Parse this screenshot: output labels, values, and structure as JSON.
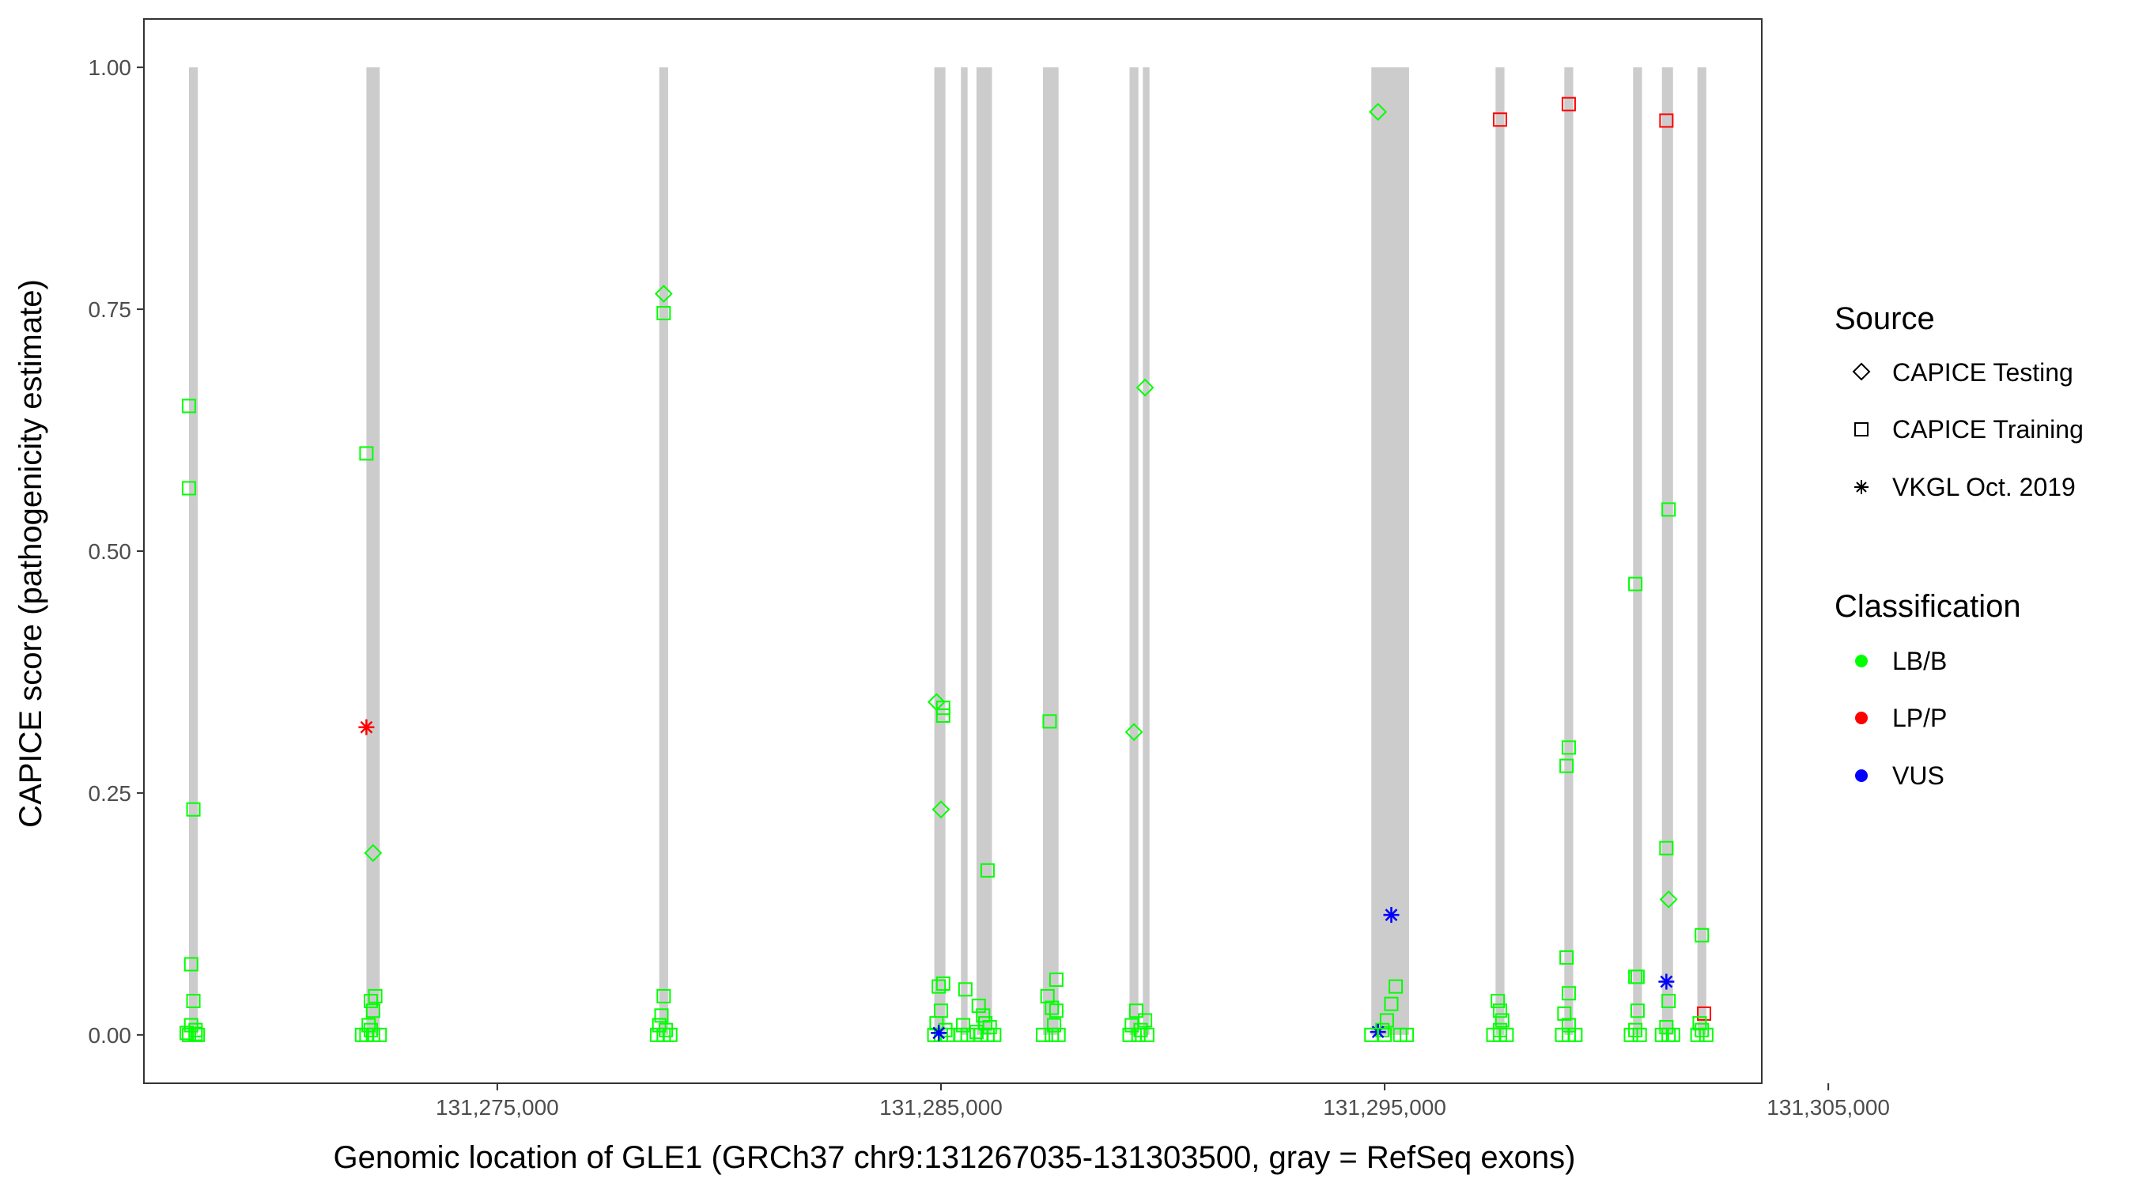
{
  "chart_data": {
    "type": "scatter",
    "title": "",
    "xlabel": "Genomic location of GLE1 (GRCh37 chr9:131267035-131303500, gray = RefSeq exons)",
    "ylabel": "CAPICE score (pathogenicity estimate)",
    "xlim": [
      131267035,
      131303500
    ],
    "ylim": [
      -0.05,
      1.05
    ],
    "x_ticks": [
      131275000,
      131285000,
      131295000,
      131305000
    ],
    "x_tick_labels": [
      "131,275,000",
      "131,285,000",
      "131,295,000",
      "131,305,000"
    ],
    "y_ticks": [
      0,
      0.25,
      0.5,
      0.75,
      1
    ],
    "y_tick_labels": [
      "0.00",
      "0.25",
      "0.50",
      "0.75",
      "1.00"
    ],
    "grid": false,
    "legend_placement": "right",
    "exons": [
      {
        "start": 131268050,
        "end": 131268250
      },
      {
        "start": 131272050,
        "end": 131272350
      },
      {
        "start": 131278650,
        "end": 131278850
      },
      {
        "start": 131284850,
        "end": 131285100
      },
      {
        "start": 131285450,
        "end": 131285600
      },
      {
        "start": 131285800,
        "end": 131286150
      },
      {
        "start": 131287300,
        "end": 131287650
      },
      {
        "start": 131289250,
        "end": 131289450
      },
      {
        "start": 131289550,
        "end": 131289700
      },
      {
        "start": 131294700,
        "end": 131295550
      },
      {
        "start": 131297500,
        "end": 131297700
      },
      {
        "start": 131299050,
        "end": 131299250
      },
      {
        "start": 131300600,
        "end": 131300800
      },
      {
        "start": 131301250,
        "end": 131301500
      },
      {
        "start": 131302050,
        "end": 131302250
      }
    ],
    "legend": {
      "source_title": "Source",
      "source_items": [
        {
          "label": "CAPICE Testing",
          "shape": "diamond"
        },
        {
          "label": "CAPICE Training",
          "shape": "square"
        },
        {
          "label": "VKGL Oct. 2019",
          "shape": "asterisk"
        }
      ],
      "class_title": "Classification",
      "class_items": [
        {
          "label": "LB/B",
          "color": "#00ff00"
        },
        {
          "label": "LP/P",
          "color": "#ff0000"
        },
        {
          "label": "VUS",
          "color": "#0000ff"
        }
      ]
    },
    "colors": {
      "LB/B": "#00ff00",
      "LP/P": "#ff0000",
      "VUS": "#0000ff",
      "exon": "#cccccc"
    },
    "points": [
      {
        "x": 131268050,
        "y": 0.65,
        "source": "CAPICE Training",
        "class": "LB/B"
      },
      {
        "x": 131268050,
        "y": 0.565,
        "source": "CAPICE Training",
        "class": "LB/B"
      },
      {
        "x": 131268150,
        "y": 0.233,
        "source": "CAPICE Training",
        "class": "LB/B"
      },
      {
        "x": 131268100,
        "y": 0.073,
        "source": "CAPICE Training",
        "class": "LB/B"
      },
      {
        "x": 131268150,
        "y": 0.035,
        "source": "CAPICE Training",
        "class": "LB/B"
      },
      {
        "x": 131268100,
        "y": 0.01,
        "source": "CAPICE Training",
        "class": "LB/B"
      },
      {
        "x": 131268200,
        "y": 0.005,
        "source": "CAPICE Training",
        "class": "LB/B"
      },
      {
        "x": 131268000,
        "y": 0.002,
        "source": "CAPICE Training",
        "class": "LB/B"
      },
      {
        "x": 131268200,
        "y": 0.001,
        "source": "CAPICE Training",
        "class": "LB/B"
      },
      {
        "x": 131268050,
        "y": 0.0,
        "source": "CAPICE Training",
        "class": "LB/B"
      },
      {
        "x": 131268250,
        "y": 0.0,
        "source": "CAPICE Training",
        "class": "LB/B"
      },
      {
        "x": 131272050,
        "y": 0.601,
        "source": "CAPICE Training",
        "class": "LB/B"
      },
      {
        "x": 131272050,
        "y": 0.318,
        "source": "VKGL Oct. 2019",
        "class": "LP/P"
      },
      {
        "x": 131272200,
        "y": 0.188,
        "source": "CAPICE Testing",
        "class": "LB/B"
      },
      {
        "x": 131272250,
        "y": 0.04,
        "source": "CAPICE Training",
        "class": "LB/B"
      },
      {
        "x": 131272150,
        "y": 0.035,
        "source": "CAPICE Training",
        "class": "LB/B"
      },
      {
        "x": 131272200,
        "y": 0.025,
        "source": "CAPICE Training",
        "class": "LB/B"
      },
      {
        "x": 131272100,
        "y": 0.01,
        "source": "CAPICE Training",
        "class": "LB/B"
      },
      {
        "x": 131272150,
        "y": 0.005,
        "source": "CAPICE Training",
        "class": "LB/B"
      },
      {
        "x": 131271950,
        "y": 0.0,
        "source": "CAPICE Training",
        "class": "LB/B"
      },
      {
        "x": 131272050,
        "y": 0.0,
        "source": "CAPICE Training",
        "class": "LB/B"
      },
      {
        "x": 131272200,
        "y": 0.0,
        "source": "CAPICE Training",
        "class": "LB/B"
      },
      {
        "x": 131272350,
        "y": 0.0,
        "source": "CAPICE Training",
        "class": "LB/B"
      },
      {
        "x": 131278750,
        "y": 0.766,
        "source": "CAPICE Testing",
        "class": "LB/B"
      },
      {
        "x": 131278750,
        "y": 0.746,
        "source": "CAPICE Training",
        "class": "LB/B"
      },
      {
        "x": 131278750,
        "y": 0.04,
        "source": "CAPICE Training",
        "class": "LB/B"
      },
      {
        "x": 131278700,
        "y": 0.02,
        "source": "CAPICE Training",
        "class": "LB/B"
      },
      {
        "x": 131278650,
        "y": 0.01,
        "source": "CAPICE Training",
        "class": "LB/B"
      },
      {
        "x": 131278800,
        "y": 0.005,
        "source": "CAPICE Training",
        "class": "LB/B"
      },
      {
        "x": 131278600,
        "y": 0.0,
        "source": "CAPICE Training",
        "class": "LB/B"
      },
      {
        "x": 131278750,
        "y": 0.0,
        "source": "CAPICE Training",
        "class": "LB/B"
      },
      {
        "x": 131278900,
        "y": 0.0,
        "source": "CAPICE Training",
        "class": "LB/B"
      },
      {
        "x": 131284900,
        "y": 0.344,
        "source": "CAPICE Testing",
        "class": "LB/B"
      },
      {
        "x": 131285050,
        "y": 0.338,
        "source": "CAPICE Training",
        "class": "LB/B"
      },
      {
        "x": 131285050,
        "y": 0.33,
        "source": "CAPICE Training",
        "class": "LB/B"
      },
      {
        "x": 131285000,
        "y": 0.233,
        "source": "CAPICE Testing",
        "class": "LB/B"
      },
      {
        "x": 131285050,
        "y": 0.053,
        "source": "CAPICE Training",
        "class": "LB/B"
      },
      {
        "x": 131284950,
        "y": 0.05,
        "source": "CAPICE Training",
        "class": "LB/B"
      },
      {
        "x": 131285000,
        "y": 0.025,
        "source": "CAPICE Training",
        "class": "LB/B"
      },
      {
        "x": 131284900,
        "y": 0.012,
        "source": "CAPICE Training",
        "class": "LB/B"
      },
      {
        "x": 131285100,
        "y": 0.005,
        "source": "CAPICE Training",
        "class": "LB/B"
      },
      {
        "x": 131284850,
        "y": 0.0,
        "source": "CAPICE Training",
        "class": "LB/B"
      },
      {
        "x": 131285000,
        "y": 0.0,
        "source": "CAPICE Training",
        "class": "LB/B"
      },
      {
        "x": 131285150,
        "y": 0.0,
        "source": "CAPICE Training",
        "class": "LB/B"
      },
      {
        "x": 131284950,
        "y": 0.002,
        "source": "VKGL Oct. 2019",
        "class": "VUS"
      },
      {
        "x": 131285550,
        "y": 0.047,
        "source": "CAPICE Training",
        "class": "LB/B"
      },
      {
        "x": 131285500,
        "y": 0.01,
        "source": "CAPICE Training",
        "class": "LB/B"
      },
      {
        "x": 131285450,
        "y": 0.0,
        "source": "CAPICE Training",
        "class": "LB/B"
      },
      {
        "x": 131285600,
        "y": 0.0,
        "source": "CAPICE Training",
        "class": "LB/B"
      },
      {
        "x": 131286050,
        "y": 0.17,
        "source": "CAPICE Training",
        "class": "LB/B"
      },
      {
        "x": 131285850,
        "y": 0.03,
        "source": "CAPICE Training",
        "class": "LB/B"
      },
      {
        "x": 131285950,
        "y": 0.02,
        "source": "CAPICE Training",
        "class": "LB/B"
      },
      {
        "x": 131286000,
        "y": 0.012,
        "source": "CAPICE Training",
        "class": "LB/B"
      },
      {
        "x": 131286100,
        "y": 0.008,
        "source": "CAPICE Training",
        "class": "LB/B"
      },
      {
        "x": 131285800,
        "y": 0.003,
        "source": "CAPICE Training",
        "class": "LB/B"
      },
      {
        "x": 131285900,
        "y": 0.0,
        "source": "CAPICE Training",
        "class": "LB/B"
      },
      {
        "x": 131286050,
        "y": 0.0,
        "source": "CAPICE Training",
        "class": "LB/B"
      },
      {
        "x": 131286200,
        "y": 0.0,
        "source": "CAPICE Training",
        "class": "LB/B"
      },
      {
        "x": 131287450,
        "y": 0.324,
        "source": "CAPICE Training",
        "class": "LB/B"
      },
      {
        "x": 131287600,
        "y": 0.057,
        "source": "CAPICE Training",
        "class": "LB/B"
      },
      {
        "x": 131287400,
        "y": 0.04,
        "source": "CAPICE Training",
        "class": "LB/B"
      },
      {
        "x": 131287500,
        "y": 0.028,
        "source": "CAPICE Training",
        "class": "LB/B"
      },
      {
        "x": 131287600,
        "y": 0.025,
        "source": "CAPICE Training",
        "class": "LB/B"
      },
      {
        "x": 131287550,
        "y": 0.01,
        "source": "CAPICE Training",
        "class": "LB/B"
      },
      {
        "x": 131287300,
        "y": 0.0,
        "source": "CAPICE Training",
        "class": "LB/B"
      },
      {
        "x": 131287500,
        "y": 0.0,
        "source": "CAPICE Training",
        "class": "LB/B"
      },
      {
        "x": 131287650,
        "y": 0.0,
        "source": "CAPICE Training",
        "class": "LB/B"
      },
      {
        "x": 131289350,
        "y": 0.313,
        "source": "CAPICE Testing",
        "class": "LB/B"
      },
      {
        "x": 131289600,
        "y": 0.669,
        "source": "CAPICE Testing",
        "class": "LB/B"
      },
      {
        "x": 131289400,
        "y": 0.025,
        "source": "CAPICE Training",
        "class": "LB/B"
      },
      {
        "x": 131289600,
        "y": 0.015,
        "source": "CAPICE Training",
        "class": "LB/B"
      },
      {
        "x": 131289300,
        "y": 0.01,
        "source": "CAPICE Training",
        "class": "LB/B"
      },
      {
        "x": 131289500,
        "y": 0.005,
        "source": "CAPICE Training",
        "class": "LB/B"
      },
      {
        "x": 131289250,
        "y": 0.0,
        "source": "CAPICE Training",
        "class": "LB/B"
      },
      {
        "x": 131289450,
        "y": 0.0,
        "source": "CAPICE Training",
        "class": "LB/B"
      },
      {
        "x": 131289650,
        "y": 0.0,
        "source": "CAPICE Training",
        "class": "LB/B"
      },
      {
        "x": 131294850,
        "y": 0.954,
        "source": "CAPICE Testing",
        "class": "LB/B"
      },
      {
        "x": 131295150,
        "y": 0.124,
        "source": "VKGL Oct. 2019",
        "class": "VUS"
      },
      {
        "x": 131295250,
        "y": 0.05,
        "source": "CAPICE Training",
        "class": "LB/B"
      },
      {
        "x": 131295150,
        "y": 0.032,
        "source": "CAPICE Training",
        "class": "LB/B"
      },
      {
        "x": 131295050,
        "y": 0.015,
        "source": "CAPICE Training",
        "class": "LB/B"
      },
      {
        "x": 131294950,
        "y": 0.005,
        "source": "CAPICE Training",
        "class": "LB/B"
      },
      {
        "x": 131294850,
        "y": 0.003,
        "source": "VKGL Oct. 2019",
        "class": "VUS"
      },
      {
        "x": 131294700,
        "y": 0.0,
        "source": "CAPICE Training",
        "class": "LB/B"
      },
      {
        "x": 131295000,
        "y": 0.0,
        "source": "CAPICE Training",
        "class": "LB/B"
      },
      {
        "x": 131295350,
        "y": 0.0,
        "source": "CAPICE Training",
        "class": "LB/B"
      },
      {
        "x": 131295500,
        "y": 0.0,
        "source": "CAPICE Training",
        "class": "LB/B"
      },
      {
        "x": 131297600,
        "y": 0.946,
        "source": "CAPICE Training",
        "class": "LP/P"
      },
      {
        "x": 131297550,
        "y": 0.035,
        "source": "CAPICE Training",
        "class": "LB/B"
      },
      {
        "x": 131297600,
        "y": 0.025,
        "source": "CAPICE Training",
        "class": "LB/B"
      },
      {
        "x": 131297650,
        "y": 0.015,
        "source": "CAPICE Training",
        "class": "LB/B"
      },
      {
        "x": 131297600,
        "y": 0.005,
        "source": "CAPICE Training",
        "class": "LB/B"
      },
      {
        "x": 131297450,
        "y": 0.0,
        "source": "CAPICE Training",
        "class": "LB/B"
      },
      {
        "x": 131297600,
        "y": 0.0,
        "source": "CAPICE Training",
        "class": "LB/B"
      },
      {
        "x": 131297750,
        "y": 0.0,
        "source": "CAPICE Training",
        "class": "LB/B"
      },
      {
        "x": 131299150,
        "y": 0.962,
        "source": "CAPICE Training",
        "class": "LP/P"
      },
      {
        "x": 131299150,
        "y": 0.297,
        "source": "CAPICE Training",
        "class": "LB/B"
      },
      {
        "x": 131299100,
        "y": 0.278,
        "source": "CAPICE Training",
        "class": "LB/B"
      },
      {
        "x": 131299100,
        "y": 0.08,
        "source": "CAPICE Training",
        "class": "LB/B"
      },
      {
        "x": 131299150,
        "y": 0.043,
        "source": "CAPICE Training",
        "class": "LB/B"
      },
      {
        "x": 131299050,
        "y": 0.022,
        "source": "CAPICE Training",
        "class": "LB/B"
      },
      {
        "x": 131299150,
        "y": 0.01,
        "source": "CAPICE Training",
        "class": "LB/B"
      },
      {
        "x": 131299000,
        "y": 0.0,
        "source": "CAPICE Training",
        "class": "LB/B"
      },
      {
        "x": 131299150,
        "y": 0.0,
        "source": "CAPICE Training",
        "class": "LB/B"
      },
      {
        "x": 131299300,
        "y": 0.0,
        "source": "CAPICE Training",
        "class": "LB/B"
      },
      {
        "x": 131300650,
        "y": 0.466,
        "source": "CAPICE Training",
        "class": "LB/B"
      },
      {
        "x": 131300650,
        "y": 0.06,
        "source": "CAPICE Training",
        "class": "LB/B"
      },
      {
        "x": 131300700,
        "y": 0.06,
        "source": "CAPICE Training",
        "class": "LB/B"
      },
      {
        "x": 131300700,
        "y": 0.025,
        "source": "CAPICE Training",
        "class": "LB/B"
      },
      {
        "x": 131300650,
        "y": 0.005,
        "source": "CAPICE Training",
        "class": "LB/B"
      },
      {
        "x": 131300550,
        "y": 0.0,
        "source": "CAPICE Training",
        "class": "LB/B"
      },
      {
        "x": 131300750,
        "y": 0.0,
        "source": "CAPICE Training",
        "class": "LB/B"
      },
      {
        "x": 131301350,
        "y": 0.945,
        "source": "CAPICE Training",
        "class": "LP/P"
      },
      {
        "x": 131301400,
        "y": 0.543,
        "source": "CAPICE Training",
        "class": "LB/B"
      },
      {
        "x": 131301350,
        "y": 0.193,
        "source": "CAPICE Training",
        "class": "LB/B"
      },
      {
        "x": 131301400,
        "y": 0.14,
        "source": "CAPICE Testing",
        "class": "LB/B"
      },
      {
        "x": 131301350,
        "y": 0.055,
        "source": "VKGL Oct. 2019",
        "class": "VUS"
      },
      {
        "x": 131301400,
        "y": 0.035,
        "source": "CAPICE Training",
        "class": "LB/B"
      },
      {
        "x": 131301350,
        "y": 0.008,
        "source": "CAPICE Training",
        "class": "LB/B"
      },
      {
        "x": 131301250,
        "y": 0.0,
        "source": "CAPICE Training",
        "class": "LB/B"
      },
      {
        "x": 131301400,
        "y": 0.0,
        "source": "CAPICE Training",
        "class": "LB/B"
      },
      {
        "x": 131301500,
        "y": 0.0,
        "source": "CAPICE Training",
        "class": "LB/B"
      },
      {
        "x": 131302150,
        "y": 0.103,
        "source": "CAPICE Training",
        "class": "LB/B"
      },
      {
        "x": 131302200,
        "y": 0.022,
        "source": "CAPICE Training",
        "class": "LP/P"
      },
      {
        "x": 131302100,
        "y": 0.012,
        "source": "CAPICE Training",
        "class": "LB/B"
      },
      {
        "x": 131302150,
        "y": 0.005,
        "source": "CAPICE Training",
        "class": "LB/B"
      },
      {
        "x": 131302050,
        "y": 0.0,
        "source": "CAPICE Training",
        "class": "LB/B"
      },
      {
        "x": 131302250,
        "y": 0.0,
        "source": "CAPICE Training",
        "class": "LB/B"
      }
    ]
  }
}
